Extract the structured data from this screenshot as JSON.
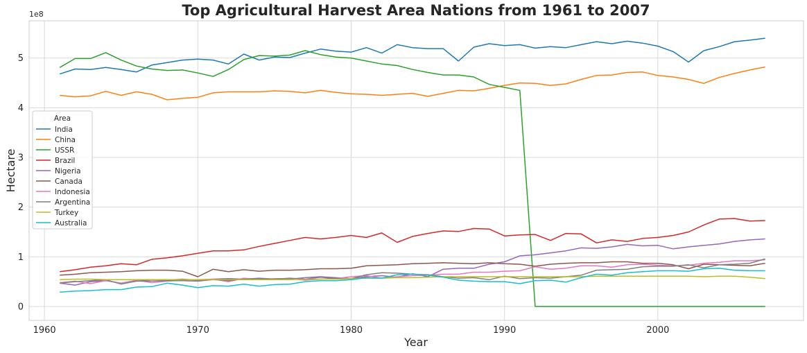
{
  "chart_data": {
    "type": "line",
    "title": "Top Agricultural Harvest Area Nations from 1961 to 2007",
    "xlabel": "Year",
    "ylabel": "Hectare",
    "y_offset_text": "1e8",
    "xlim": [
      1959,
      2009.5
    ],
    "ylim": [
      -0.28,
      5.75
    ],
    "x_ticks": [
      1960,
      1970,
      1980,
      1990,
      2000
    ],
    "y_ticks": [
      0,
      1,
      2,
      3,
      4,
      5
    ],
    "grid": true,
    "legend_title": "Area",
    "legend_position": "center-left",
    "x": [
      1961,
      1962,
      1963,
      1964,
      1965,
      1966,
      1967,
      1968,
      1969,
      1970,
      1971,
      1972,
      1973,
      1974,
      1975,
      1976,
      1977,
      1978,
      1979,
      1980,
      1981,
      1982,
      1983,
      1984,
      1985,
      1986,
      1987,
      1988,
      1989,
      1990,
      1991,
      1992,
      1993,
      1994,
      1995,
      1996,
      1997,
      1998,
      1999,
      2000,
      2001,
      2002,
      2003,
      2004,
      2005,
      2006,
      2007
    ],
    "series": [
      {
        "name": "India",
        "color": "#1f77b4",
        "values": [
          4.68,
          4.78,
          4.77,
          4.81,
          4.77,
          4.72,
          4.86,
          4.91,
          4.96,
          4.98,
          4.96,
          4.88,
          5.08,
          4.96,
          5.02,
          5.01,
          5.1,
          5.18,
          5.14,
          5.12,
          5.21,
          5.1,
          5.27,
          5.21,
          5.19,
          5.19,
          4.94,
          5.22,
          5.29,
          5.25,
          5.27,
          5.2,
          5.23,
          5.21,
          5.27,
          5.33,
          5.29,
          5.34,
          5.3,
          5.24,
          5.13,
          4.92,
          5.15,
          5.23,
          5.33,
          5.36,
          5.4
        ]
      },
      {
        "name": "China",
        "color": "#ff7f0e",
        "values": [
          4.25,
          4.22,
          4.24,
          4.33,
          4.25,
          4.32,
          4.27,
          4.16,
          4.19,
          4.21,
          4.3,
          4.32,
          4.32,
          4.32,
          4.34,
          4.33,
          4.3,
          4.35,
          4.31,
          4.28,
          4.27,
          4.25,
          4.27,
          4.29,
          4.23,
          4.29,
          4.35,
          4.34,
          4.39,
          4.45,
          4.5,
          4.49,
          4.45,
          4.48,
          4.57,
          4.65,
          4.66,
          4.71,
          4.72,
          4.65,
          4.62,
          4.57,
          4.49,
          4.61,
          4.69,
          4.76,
          4.82
        ]
      },
      {
        "name": "USSR",
        "color": "#2ca02c",
        "values": [
          4.81,
          4.99,
          4.99,
          5.11,
          4.96,
          4.84,
          4.78,
          4.75,
          4.76,
          4.7,
          4.63,
          4.77,
          4.97,
          5.05,
          5.04,
          5.06,
          5.15,
          5.07,
          5.02,
          5.0,
          4.94,
          4.88,
          4.85,
          4.77,
          4.71,
          4.66,
          4.66,
          4.62,
          4.47,
          4.41,
          4.35,
          0,
          0,
          0,
          0,
          0,
          0,
          0,
          0,
          0,
          0,
          0,
          0,
          0,
          0,
          0,
          0
        ]
      },
      {
        "name": "Brazil",
        "color": "#d62728",
        "values": [
          0.7,
          0.74,
          0.79,
          0.82,
          0.86,
          0.84,
          0.95,
          0.98,
          1.02,
          1.07,
          1.12,
          1.12,
          1.14,
          1.21,
          1.27,
          1.33,
          1.39,
          1.36,
          1.39,
          1.43,
          1.39,
          1.48,
          1.29,
          1.41,
          1.47,
          1.52,
          1.51,
          1.57,
          1.56,
          1.42,
          1.44,
          1.45,
          1.33,
          1.47,
          1.46,
          1.28,
          1.34,
          1.31,
          1.37,
          1.39,
          1.43,
          1.5,
          1.64,
          1.76,
          1.77,
          1.72,
          1.73
        ]
      },
      {
        "name": "Nigeria",
        "color": "#9467bd",
        "values": [
          0.47,
          0.43,
          0.5,
          0.52,
          0.47,
          0.51,
          0.54,
          0.53,
          0.55,
          0.53,
          0.55,
          0.56,
          0.55,
          0.57,
          0.55,
          0.55,
          0.58,
          0.6,
          0.58,
          0.56,
          0.6,
          0.62,
          0.59,
          0.66,
          0.6,
          0.75,
          0.77,
          0.77,
          0.85,
          0.9,
          1.02,
          1.04,
          1.08,
          1.12,
          1.18,
          1.17,
          1.2,
          1.25,
          1.22,
          1.23,
          1.16,
          1.2,
          1.23,
          1.26,
          1.31,
          1.34,
          1.36
        ]
      },
      {
        "name": "Canada",
        "color": "#8c564b",
        "values": [
          0.63,
          0.65,
          0.68,
          0.69,
          0.7,
          0.72,
          0.73,
          0.73,
          0.71,
          0.6,
          0.75,
          0.7,
          0.74,
          0.71,
          0.73,
          0.73,
          0.74,
          0.76,
          0.76,
          0.77,
          0.82,
          0.83,
          0.84,
          0.86,
          0.87,
          0.88,
          0.87,
          0.86,
          0.88,
          0.86,
          0.85,
          0.81,
          0.85,
          0.87,
          0.88,
          0.88,
          0.9,
          0.9,
          0.87,
          0.87,
          0.84,
          0.76,
          0.85,
          0.84,
          0.83,
          0.82,
          0.87
        ]
      },
      {
        "name": "Indonesia",
        "color": "#e377c2",
        "values": [
          0.48,
          0.51,
          0.46,
          0.52,
          0.47,
          0.53,
          0.48,
          0.51,
          0.53,
          0.54,
          0.55,
          0.5,
          0.57,
          0.54,
          0.56,
          0.56,
          0.53,
          0.55,
          0.56,
          0.6,
          0.62,
          0.57,
          0.6,
          0.62,
          0.63,
          0.65,
          0.65,
          0.69,
          0.69,
          0.71,
          0.72,
          0.8,
          0.75,
          0.77,
          0.82,
          0.82,
          0.79,
          0.84,
          0.85,
          0.83,
          0.82,
          0.83,
          0.87,
          0.89,
          0.92,
          0.92,
          0.94
        ]
      },
      {
        "name": "Argentina",
        "color": "#7f7f7f",
        "values": [
          0.47,
          0.5,
          0.52,
          0.54,
          0.45,
          0.51,
          0.51,
          0.52,
          0.52,
          0.51,
          0.54,
          0.52,
          0.55,
          0.56,
          0.55,
          0.57,
          0.55,
          0.59,
          0.56,
          0.56,
          0.64,
          0.68,
          0.67,
          0.65,
          0.64,
          0.6,
          0.57,
          0.58,
          0.54,
          0.61,
          0.56,
          0.58,
          0.57,
          0.6,
          0.63,
          0.73,
          0.74,
          0.75,
          0.8,
          0.81,
          0.81,
          0.84,
          0.78,
          0.84,
          0.85,
          0.87,
          0.96
        ]
      },
      {
        "name": "Turkey",
        "color": "#bcbd22",
        "values": [
          0.54,
          0.55,
          0.55,
          0.54,
          0.54,
          0.54,
          0.54,
          0.54,
          0.54,
          0.54,
          0.54,
          0.54,
          0.54,
          0.54,
          0.54,
          0.54,
          0.55,
          0.55,
          0.55,
          0.56,
          0.57,
          0.57,
          0.58,
          0.58,
          0.59,
          0.6,
          0.6,
          0.6,
          0.6,
          0.6,
          0.6,
          0.6,
          0.6,
          0.6,
          0.6,
          0.61,
          0.61,
          0.61,
          0.61,
          0.61,
          0.61,
          0.61,
          0.6,
          0.61,
          0.61,
          0.59,
          0.56
        ]
      },
      {
        "name": "Australia",
        "color": "#17becf",
        "values": [
          0.29,
          0.31,
          0.32,
          0.34,
          0.34,
          0.39,
          0.4,
          0.47,
          0.43,
          0.38,
          0.42,
          0.41,
          0.45,
          0.41,
          0.44,
          0.45,
          0.5,
          0.52,
          0.52,
          0.54,
          0.58,
          0.57,
          0.64,
          0.65,
          0.63,
          0.59,
          0.53,
          0.51,
          0.5,
          0.5,
          0.46,
          0.52,
          0.53,
          0.49,
          0.58,
          0.65,
          0.63,
          0.68,
          0.7,
          0.72,
          0.72,
          0.71,
          0.76,
          0.77,
          0.73,
          0.72,
          0.72
        ]
      }
    ]
  }
}
